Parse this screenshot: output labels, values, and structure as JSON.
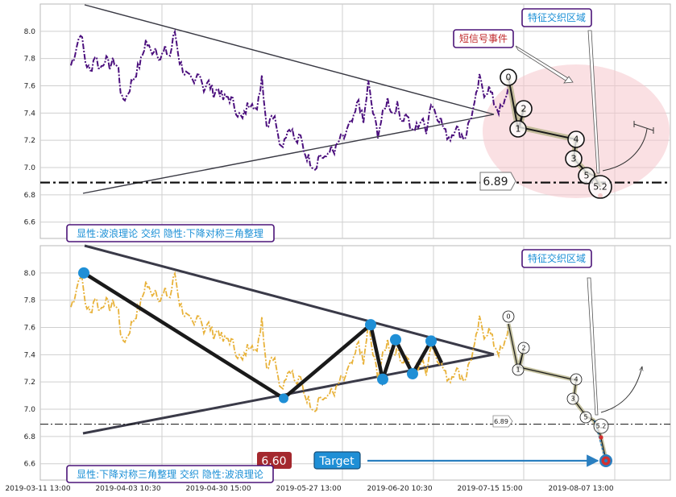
{
  "chart_data": [
    {
      "type": "line",
      "panel": "top",
      "ylim": [
        6.48,
        8.2
      ],
      "yticks": [
        "8.0",
        "7.8",
        "7.6",
        "7.4",
        "7.2",
        "7.0",
        "6.8",
        "6.6"
      ],
      "ytick_values": [
        8.0,
        7.8,
        7.6,
        7.4,
        7.2,
        7.0,
        6.8,
        6.6
      ],
      "series_color": "#4b0f7d",
      "price_line": {
        "value": 6.89,
        "label": "6.89"
      },
      "wave_labels": [
        "0",
        "2",
        "1",
        "4",
        "3",
        "5",
        "5.2"
      ],
      "annotations": {
        "feature_zone": "特征交织区域",
        "short_signal": "短信号事件",
        "footer": "显性:波浪理论 交织 隐性:下降对称三角整理"
      }
    },
    {
      "type": "line",
      "panel": "bottom",
      "ylim": [
        6.48,
        8.2
      ],
      "yticks": [
        "8.0",
        "7.8",
        "7.6",
        "7.4",
        "7.2",
        "7.0",
        "6.8",
        "6.6"
      ],
      "ytick_values": [
        8.0,
        7.8,
        7.6,
        7.4,
        7.2,
        7.0,
        6.8,
        6.6
      ],
      "series_color": "#e8b23a",
      "price_line": {
        "value": 6.89,
        "label": "6.89"
      },
      "wave_labels": [
        "0",
        "2",
        "1",
        "4",
        "3",
        "5",
        "5.2"
      ],
      "triangle_points": [
        8.0,
        7.08,
        7.62,
        7.22,
        7.51,
        7.26,
        7.5
      ],
      "stop_label": "6.60",
      "target_label": "Target",
      "annotations": {
        "feature_zone": "特征交织区域",
        "footer": "显性:下降对称三角整理 交织 隐性:波浪理论"
      }
    }
  ],
  "xaxis": {
    "ticks": [
      "2019-03-11 13:00",
      "2019-04-03 10:30",
      "2019-04-30 15:00",
      "2019-05-27 13:00",
      "2019-06-20 10:30",
      "2019-07-15 15:00",
      "2019-08-07 13:00"
    ]
  }
}
